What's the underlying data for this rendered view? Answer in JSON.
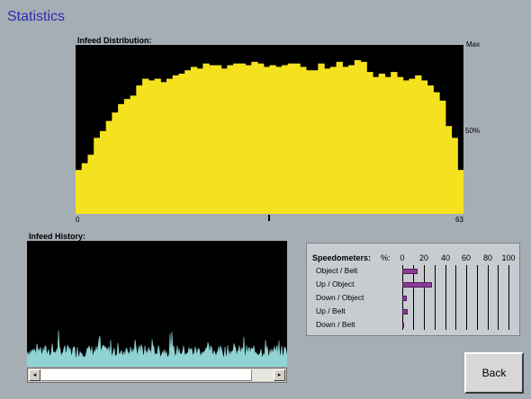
{
  "app": {
    "title": "Statistics"
  },
  "distribution": {
    "label": "Infeed Distribution:",
    "max_label": "Max",
    "half_label": "50%",
    "x_start": "0",
    "x_end": "63",
    "color": "#f5e21e",
    "background": "#000000"
  },
  "history": {
    "label": "Infeed History:",
    "color": "#8fd3d2"
  },
  "speedometers": {
    "title": "Speedometers:",
    "pct_label": "%:",
    "ticks": [
      "0",
      "20",
      "40",
      "60",
      "80",
      "100"
    ],
    "bar_color": "#8c3a99",
    "rows": [
      {
        "label": "Object / Belt",
        "value": 14
      },
      {
        "label": "Up / Object",
        "value": 28
      },
      {
        "label": "Down / Object",
        "value": 4
      },
      {
        "label": "Up / Belt",
        "value": 5
      },
      {
        "label": "Down / Belt",
        "value": 1
      }
    ]
  },
  "scrollbar": {
    "left_arrow": "◂",
    "right_arrow": "▸"
  },
  "buttons": {
    "back": "Back"
  },
  "chart_data": {
    "type": "bar",
    "x": [
      0,
      1,
      2,
      3,
      4,
      5,
      6,
      7,
      8,
      9,
      10,
      11,
      12,
      13,
      14,
      15,
      16,
      17,
      18,
      19,
      20,
      21,
      22,
      23,
      24,
      25,
      26,
      27,
      28,
      29,
      30,
      31,
      32,
      33,
      34,
      35,
      36,
      37,
      38,
      39,
      40,
      41,
      42,
      43,
      44,
      45,
      46,
      47,
      48,
      49,
      50,
      51,
      52,
      53,
      54,
      55,
      56,
      57,
      58,
      59,
      60,
      61,
      62,
      63
    ],
    "values": [
      26,
      30,
      35,
      45,
      49,
      55,
      60,
      65,
      68,
      70,
      76,
      80,
      79,
      80,
      78,
      80,
      82,
      83,
      85,
      87,
      86,
      89,
      88,
      88,
      86,
      88,
      89,
      89,
      88,
      90,
      89,
      87,
      88,
      87,
      88,
      89,
      89,
      87,
      85,
      85,
      89,
      86,
      87,
      90,
      87,
      88,
      91,
      90,
      84,
      81,
      83,
      81,
      84,
      81,
      79,
      80,
      82,
      79,
      76,
      72,
      67,
      52,
      45,
      26
    ],
    "ylim": [
      0,
      100
    ],
    "xlabel": "",
    "ylabel": ""
  }
}
